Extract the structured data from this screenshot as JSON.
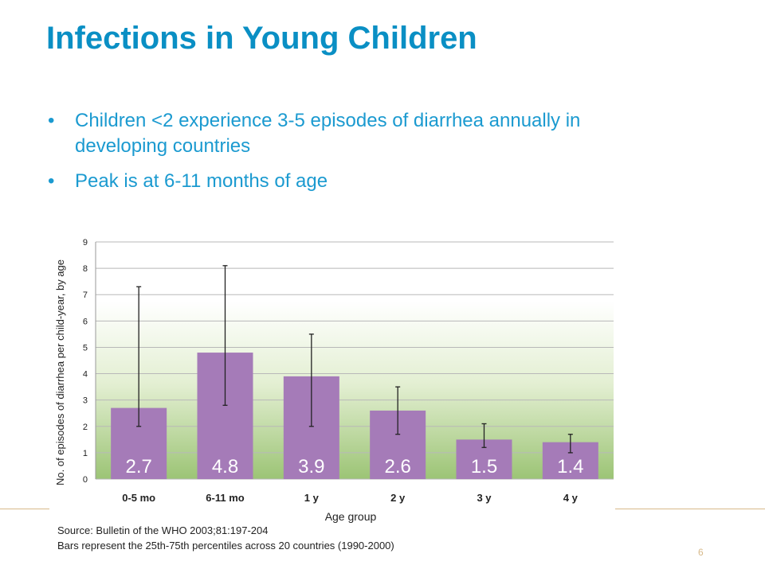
{
  "slide": {
    "title": "Infections in Young Children",
    "bullets": [
      "Children <2 experience 3-5 episodes of diarrhea annually in developing countries",
      "Peak is at 6-11 months of age"
    ],
    "bullet_glyph": "•",
    "source_lines": [
      "Source: Bulletin of the WHO 2003;81:197-204",
      "Bars represent the 25th-75th percentiles across 20 countries (1990-2000)"
    ],
    "page_number": "6",
    "colors": {
      "title": "#0a8fc4",
      "bullet_text": "#1b9ad0",
      "bar": "#a57bb8",
      "rule": "#d7b98a"
    }
  },
  "chart_data": {
    "type": "bar",
    "categories": [
      "0-5 mo",
      "6-11 mo",
      "1 y",
      "2 y",
      "3 y",
      "4 y"
    ],
    "values": [
      2.7,
      4.8,
      3.9,
      2.6,
      1.5,
      1.4
    ],
    "value_labels": [
      "2.7",
      "4.8",
      "3.9",
      "2.6",
      "1.5",
      "1.4"
    ],
    "error_low": [
      2.0,
      2.8,
      2.0,
      1.7,
      1.2,
      1.0
    ],
    "error_high": [
      7.3,
      8.1,
      5.5,
      3.5,
      2.1,
      1.7
    ],
    "xlabel": "Age group",
    "ylabel": "No. of episodes of diarrhea per child-year, by age",
    "ylim": [
      0,
      9
    ],
    "yticks": [
      0,
      1,
      2,
      3,
      4,
      5,
      6,
      7,
      8,
      9
    ],
    "grid": true,
    "legend": "none"
  }
}
